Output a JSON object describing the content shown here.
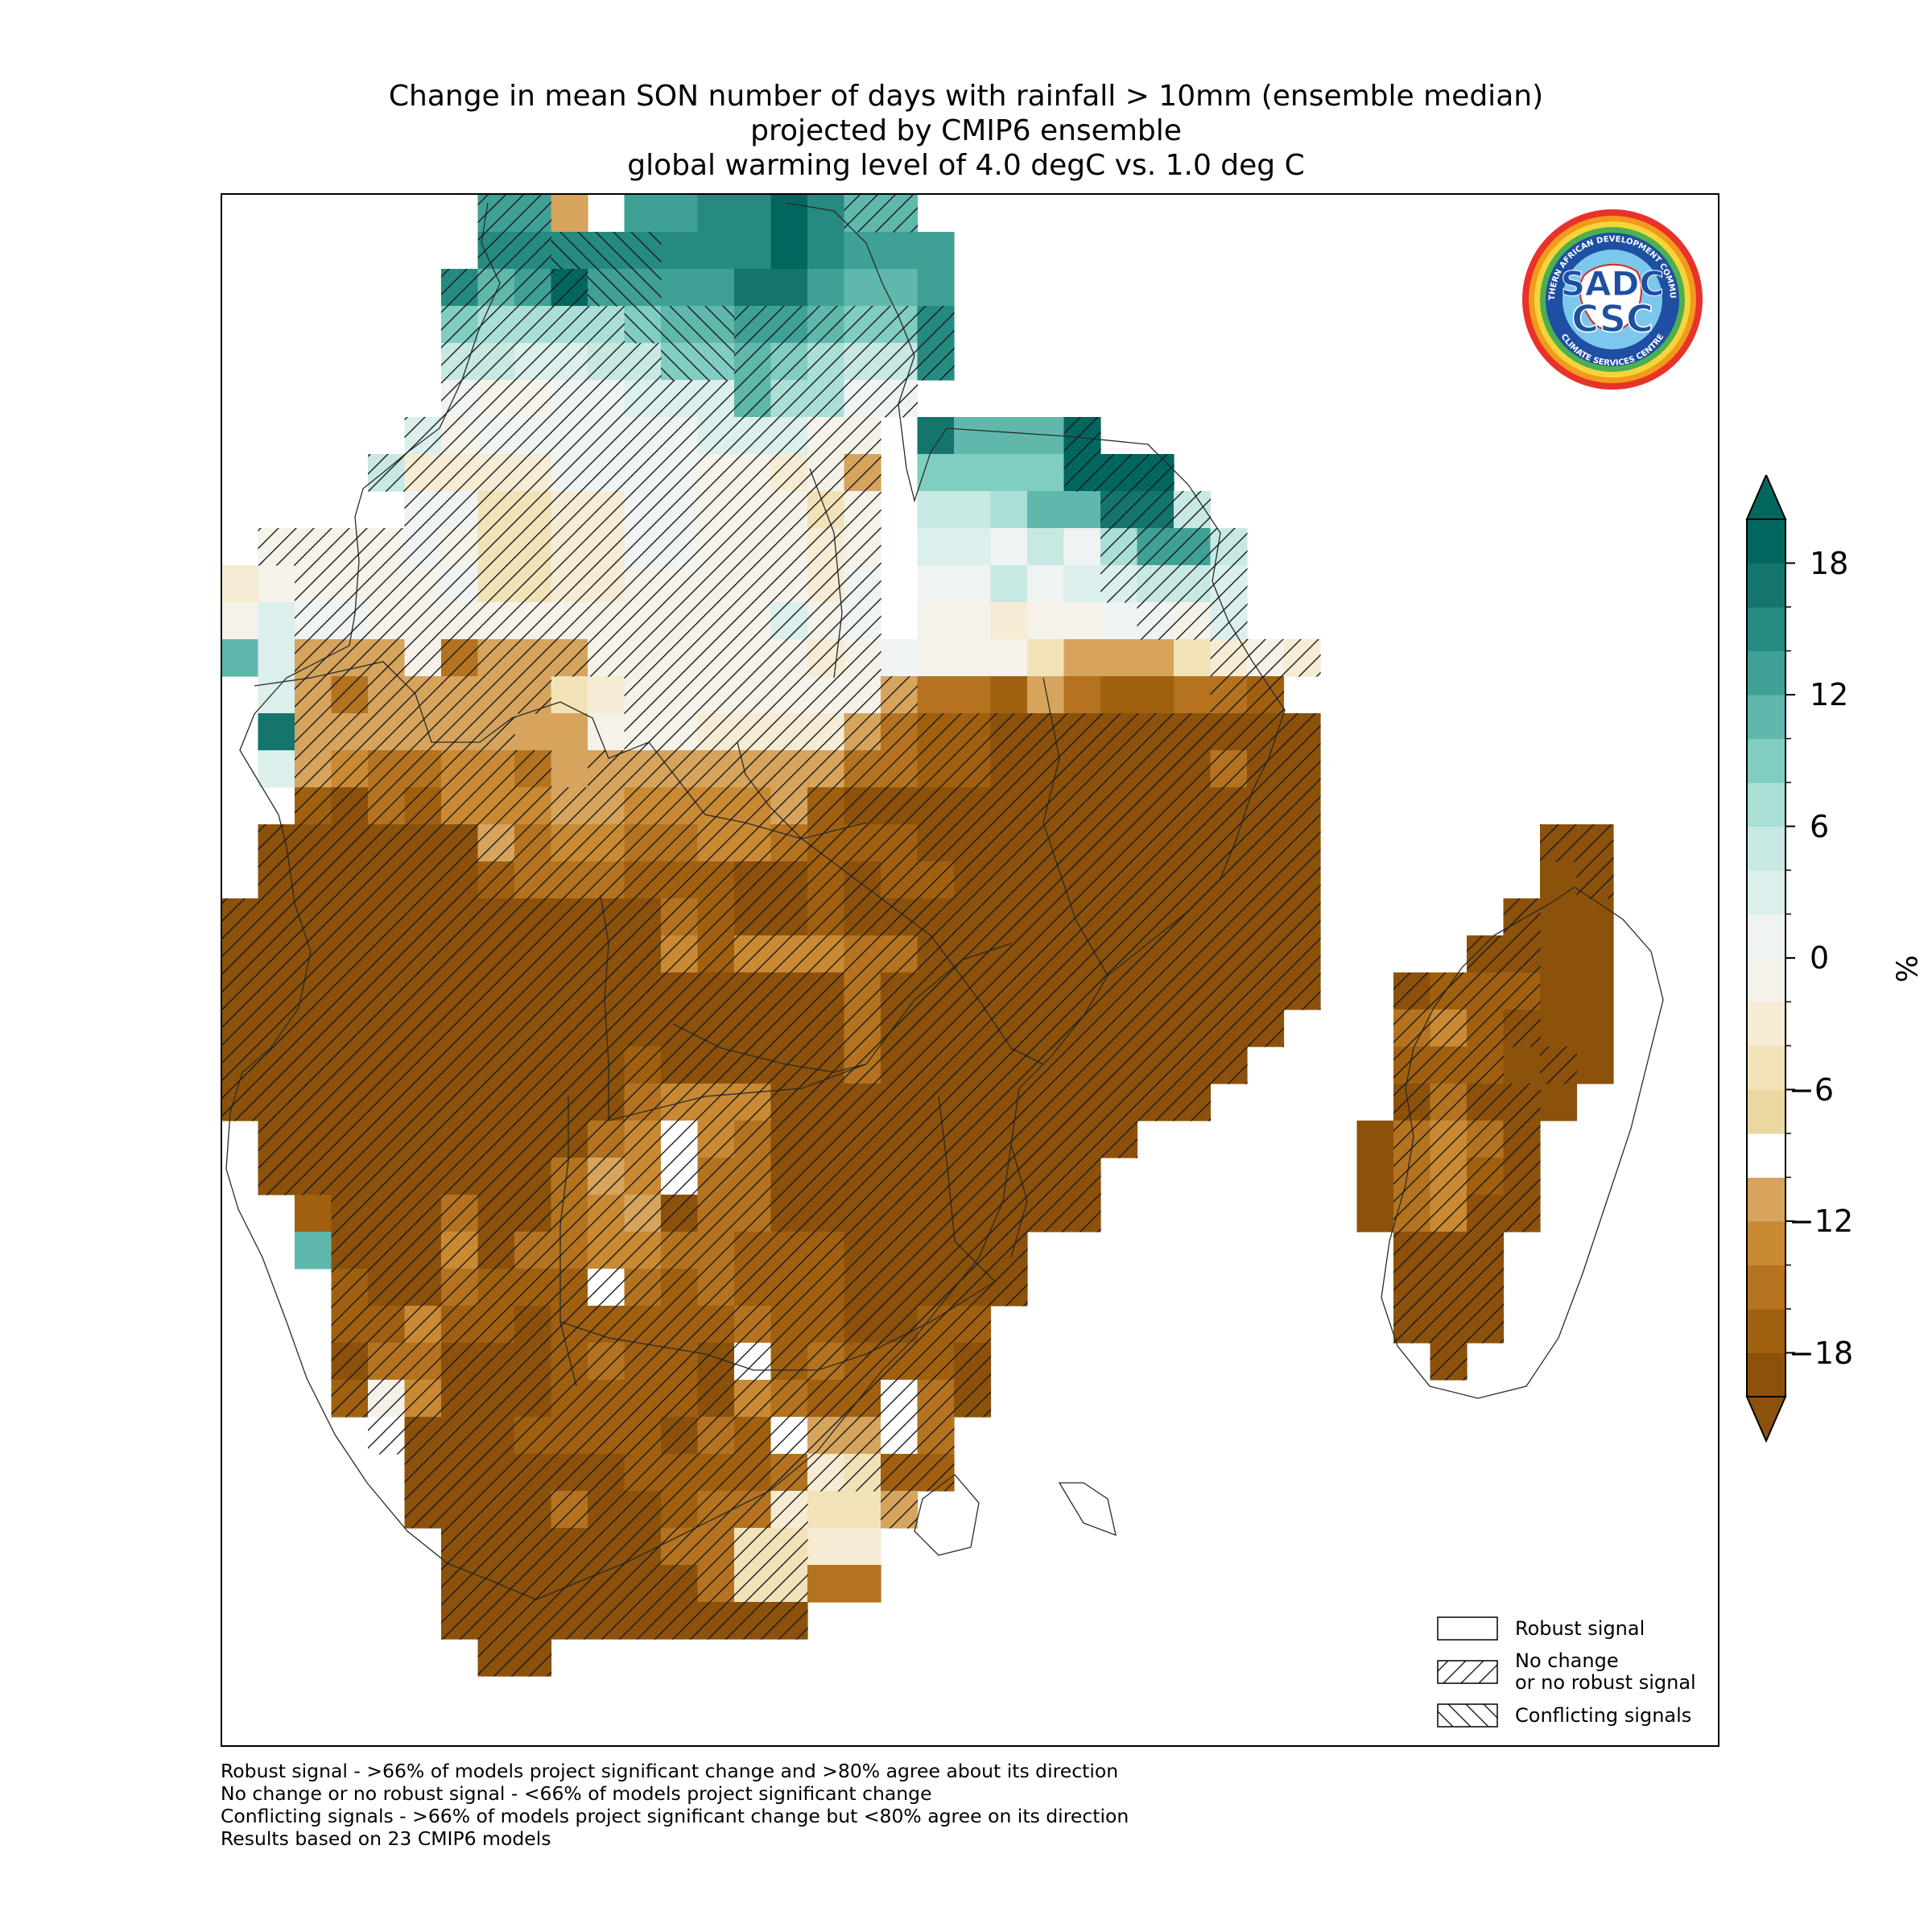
{
  "title": {
    "line1": "Change in mean SON number of days with rainfall > 10mm (ensemble median)",
    "line2": "projected by CMIP6 ensemble",
    "line3": "global warming level of 4.0 degC vs. 1.0 deg C"
  },
  "logo": {
    "text_big1": "SADC",
    "text_big2": "CSC",
    "ring_text_top": "SOUTHERN AFRICAN DEVELOPMENT COMMUNITY",
    "ring_text_bottom": "CLIMATE SERVICES CENTRE"
  },
  "legend": {
    "robust": "Robust signal",
    "nochange_line1": "No change",
    "nochange_line2": "or no robust signal",
    "conflicting": "Conflicting signals"
  },
  "footnotes": {
    "line1": "Robust signal - >66% of models project significant change and >80% agree about its direction",
    "line2": "No change or no robust signal - <66% of models project significant change",
    "line3": "Conflicting signals - >66% of models project significant change but <80% agree on its direction",
    "line4": "Results based on 23 CMIP6 models"
  },
  "colorbar": {
    "unit": "%",
    "ticks": [
      "18",
      "12",
      "6",
      "0",
      "−6",
      "−12",
      "−18"
    ],
    "levels": [
      -20,
      -18,
      -16,
      -14,
      -12,
      -10,
      -8,
      -6,
      -4,
      -2,
      0,
      2,
      4,
      6,
      8,
      10,
      12,
      14,
      16,
      18,
      20
    ],
    "colors": [
      "#8c510a",
      "#a0600f",
      "#b5731f",
      "#c98a33",
      "#d6a45c",
      "#ffffff",
      "#ebd7a1",
      "#f2e2b8",
      "#f6ecd3",
      "#f5f2ea",
      "#eff3f2",
      "#dbefec",
      "#c7e8e3",
      "#a9dfd6",
      "#80cdc1",
      "#5fb8ab",
      "#3fa196",
      "#258a80",
      "#13756c",
      "#01665e"
    ],
    "over_color": "#01665e",
    "under_color": "#8c510a"
  },
  "colors": {
    "deep_brown": "#8c510a",
    "deep_teal": "#01665e"
  }
}
